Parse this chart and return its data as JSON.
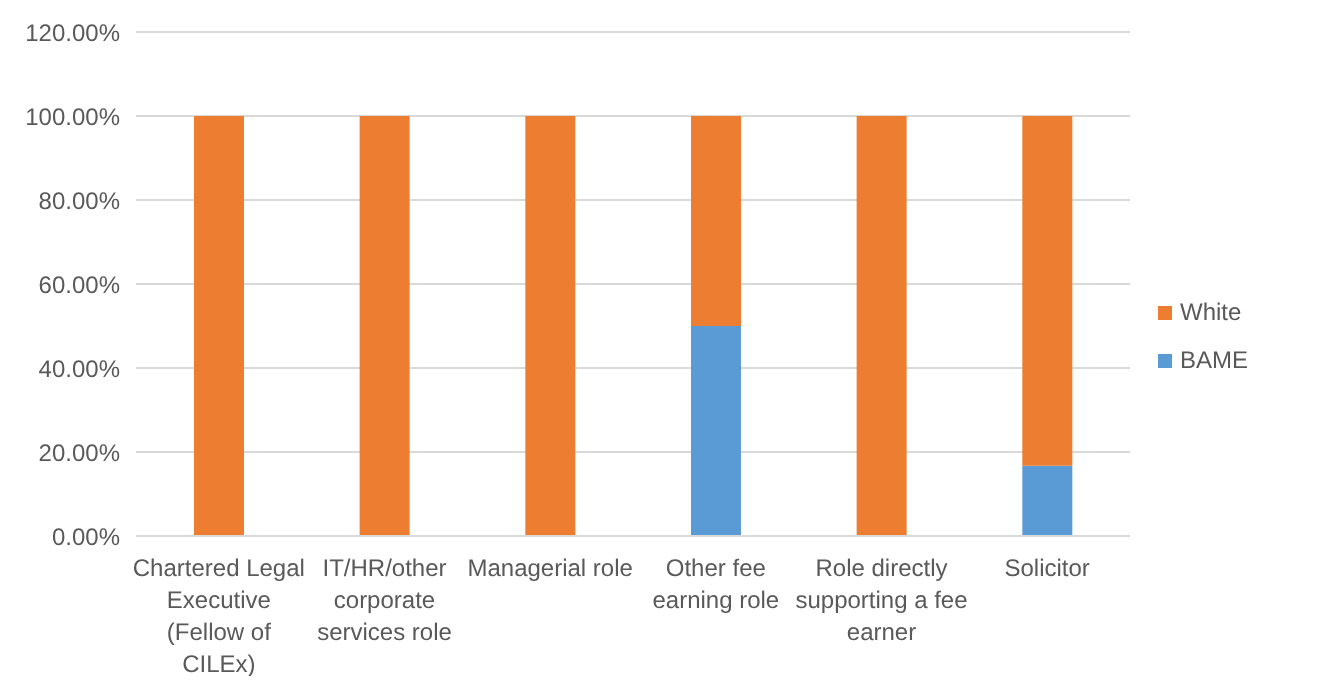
{
  "chart_data": {
    "type": "bar",
    "stacked": true,
    "categories": [
      "Chartered Legal Executive (Fellow of CILEx)",
      "IT/HR/other corporate services role",
      "Managerial role",
      "Other fee earning role",
      "Role directly supporting a fee earner",
      "Solicitor"
    ],
    "series": [
      {
        "name": "BAME",
        "color": "#5b9bd5",
        "values": [
          0,
          0,
          0,
          50,
          0,
          16.7
        ]
      },
      {
        "name": "White",
        "color": "#ed7d31",
        "values": [
          100,
          100,
          100,
          50,
          100,
          83.3
        ]
      }
    ],
    "ylim": [
      0,
      120
    ],
    "yticks": [
      {
        "value": 0,
        "label": "0.00%"
      },
      {
        "value": 20,
        "label": "20.00%"
      },
      {
        "value": 40,
        "label": "40.00%"
      },
      {
        "value": 60,
        "label": "60.00%"
      },
      {
        "value": 80,
        "label": "80.00%"
      },
      {
        "value": 100,
        "label": "100.00%"
      },
      {
        "value": 120,
        "label": "120.00%"
      }
    ],
    "grid": "y",
    "legend": "right"
  }
}
